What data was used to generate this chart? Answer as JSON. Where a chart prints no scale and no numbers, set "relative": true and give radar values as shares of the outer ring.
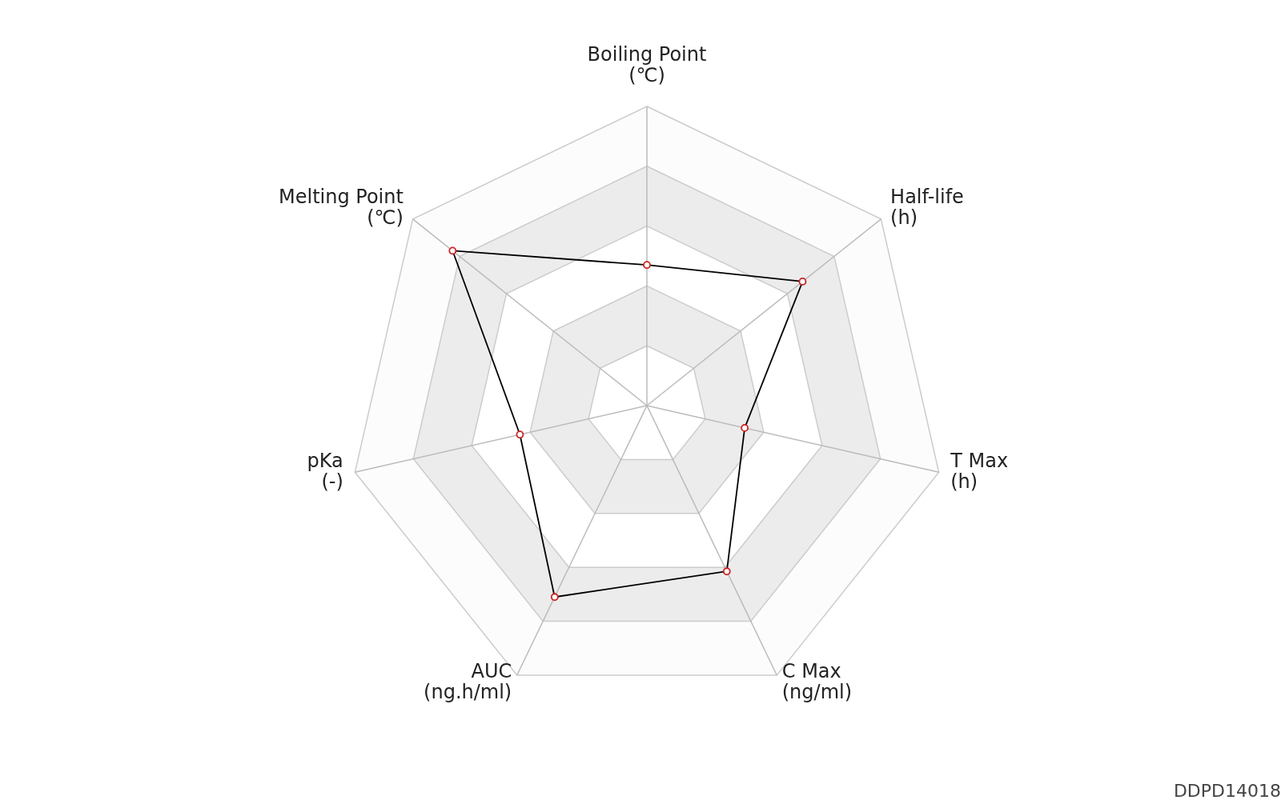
{
  "chart_data": {
    "type": "radar",
    "relative": true,
    "grid": true,
    "marker": "circle",
    "line_style": "solid",
    "categories": [
      "Boiling Point\n(℃)",
      "Half-life\n(h)",
      "T Max\n(h)",
      "C Max\n(ng/ml)",
      "AUC\n(ng.h/ml)",
      "pKa\n(-)",
      "Melting Point\n(℃)"
    ],
    "series": [
      {
        "color": "#000000",
        "values": [
          0.47,
          0.665,
          0.335,
          0.615,
          0.71,
          0.435,
          0.83
        ]
      }
    ],
    "annotations": [
      "DDPD14018"
    ]
  }
}
